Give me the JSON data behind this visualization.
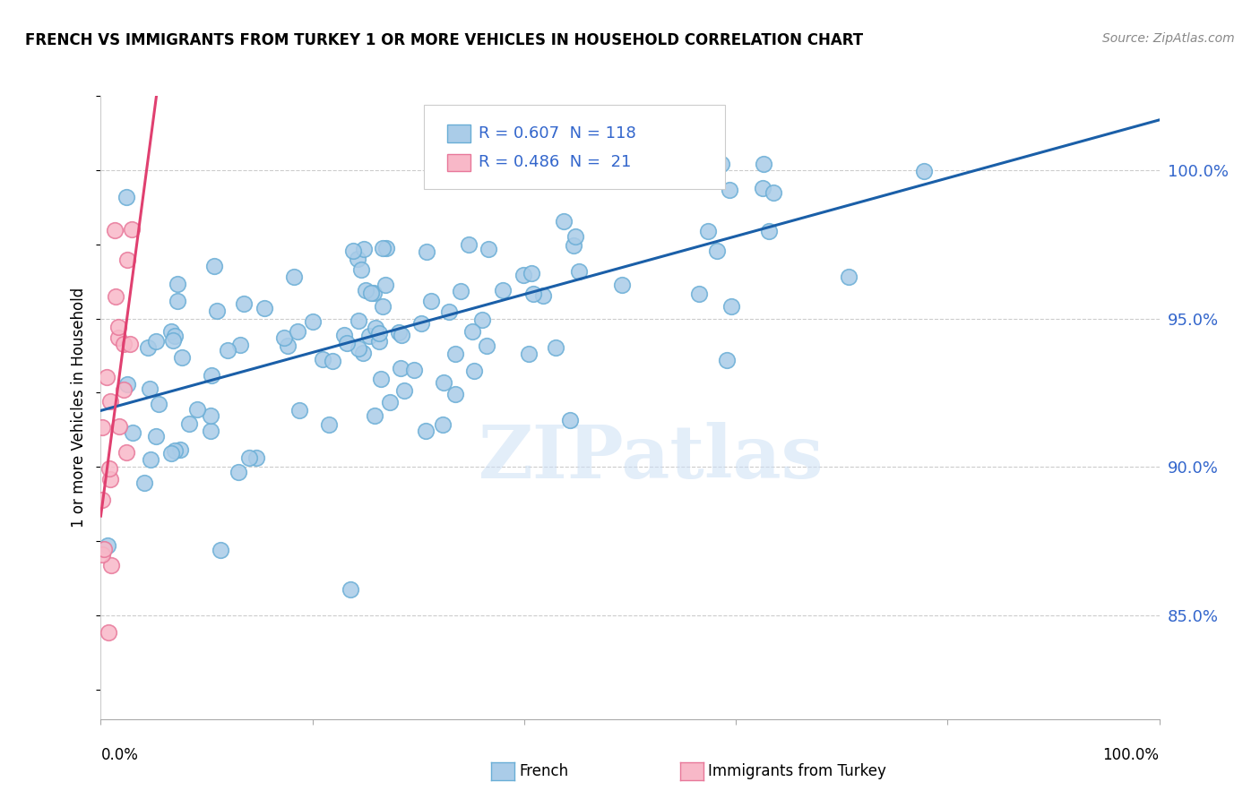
{
  "title": "FRENCH VS IMMIGRANTS FROM TURKEY 1 OR MORE VEHICLES IN HOUSEHOLD CORRELATION CHART",
  "source": "Source: ZipAtlas.com",
  "ylabel": "1 or more Vehicles in Household",
  "watermark": "ZIPatlas",
  "legend_french_r": "0.607",
  "legend_french_n": "118",
  "legend_turkey_r": "0.486",
  "legend_turkey_n": " 21",
  "french_color_fill": "#aacce8",
  "french_color_edge": "#6aaed6",
  "french_color_line": "#1a5fa8",
  "turkey_color_fill": "#f8b8c8",
  "turkey_color_edge": "#e8789a",
  "turkey_color_line": "#e04070",
  "right_tick_color": "#3366cc",
  "xlim": [
    0.0,
    1.0
  ],
  "ylim": [
    0.815,
    1.025
  ],
  "yticks": [
    0.85,
    0.9,
    0.95,
    1.0
  ],
  "ytick_labels": [
    "85.0%",
    "90.0%",
    "95.0%",
    "100.0%"
  ],
  "french_seed": 12,
  "turkey_seed": 7
}
